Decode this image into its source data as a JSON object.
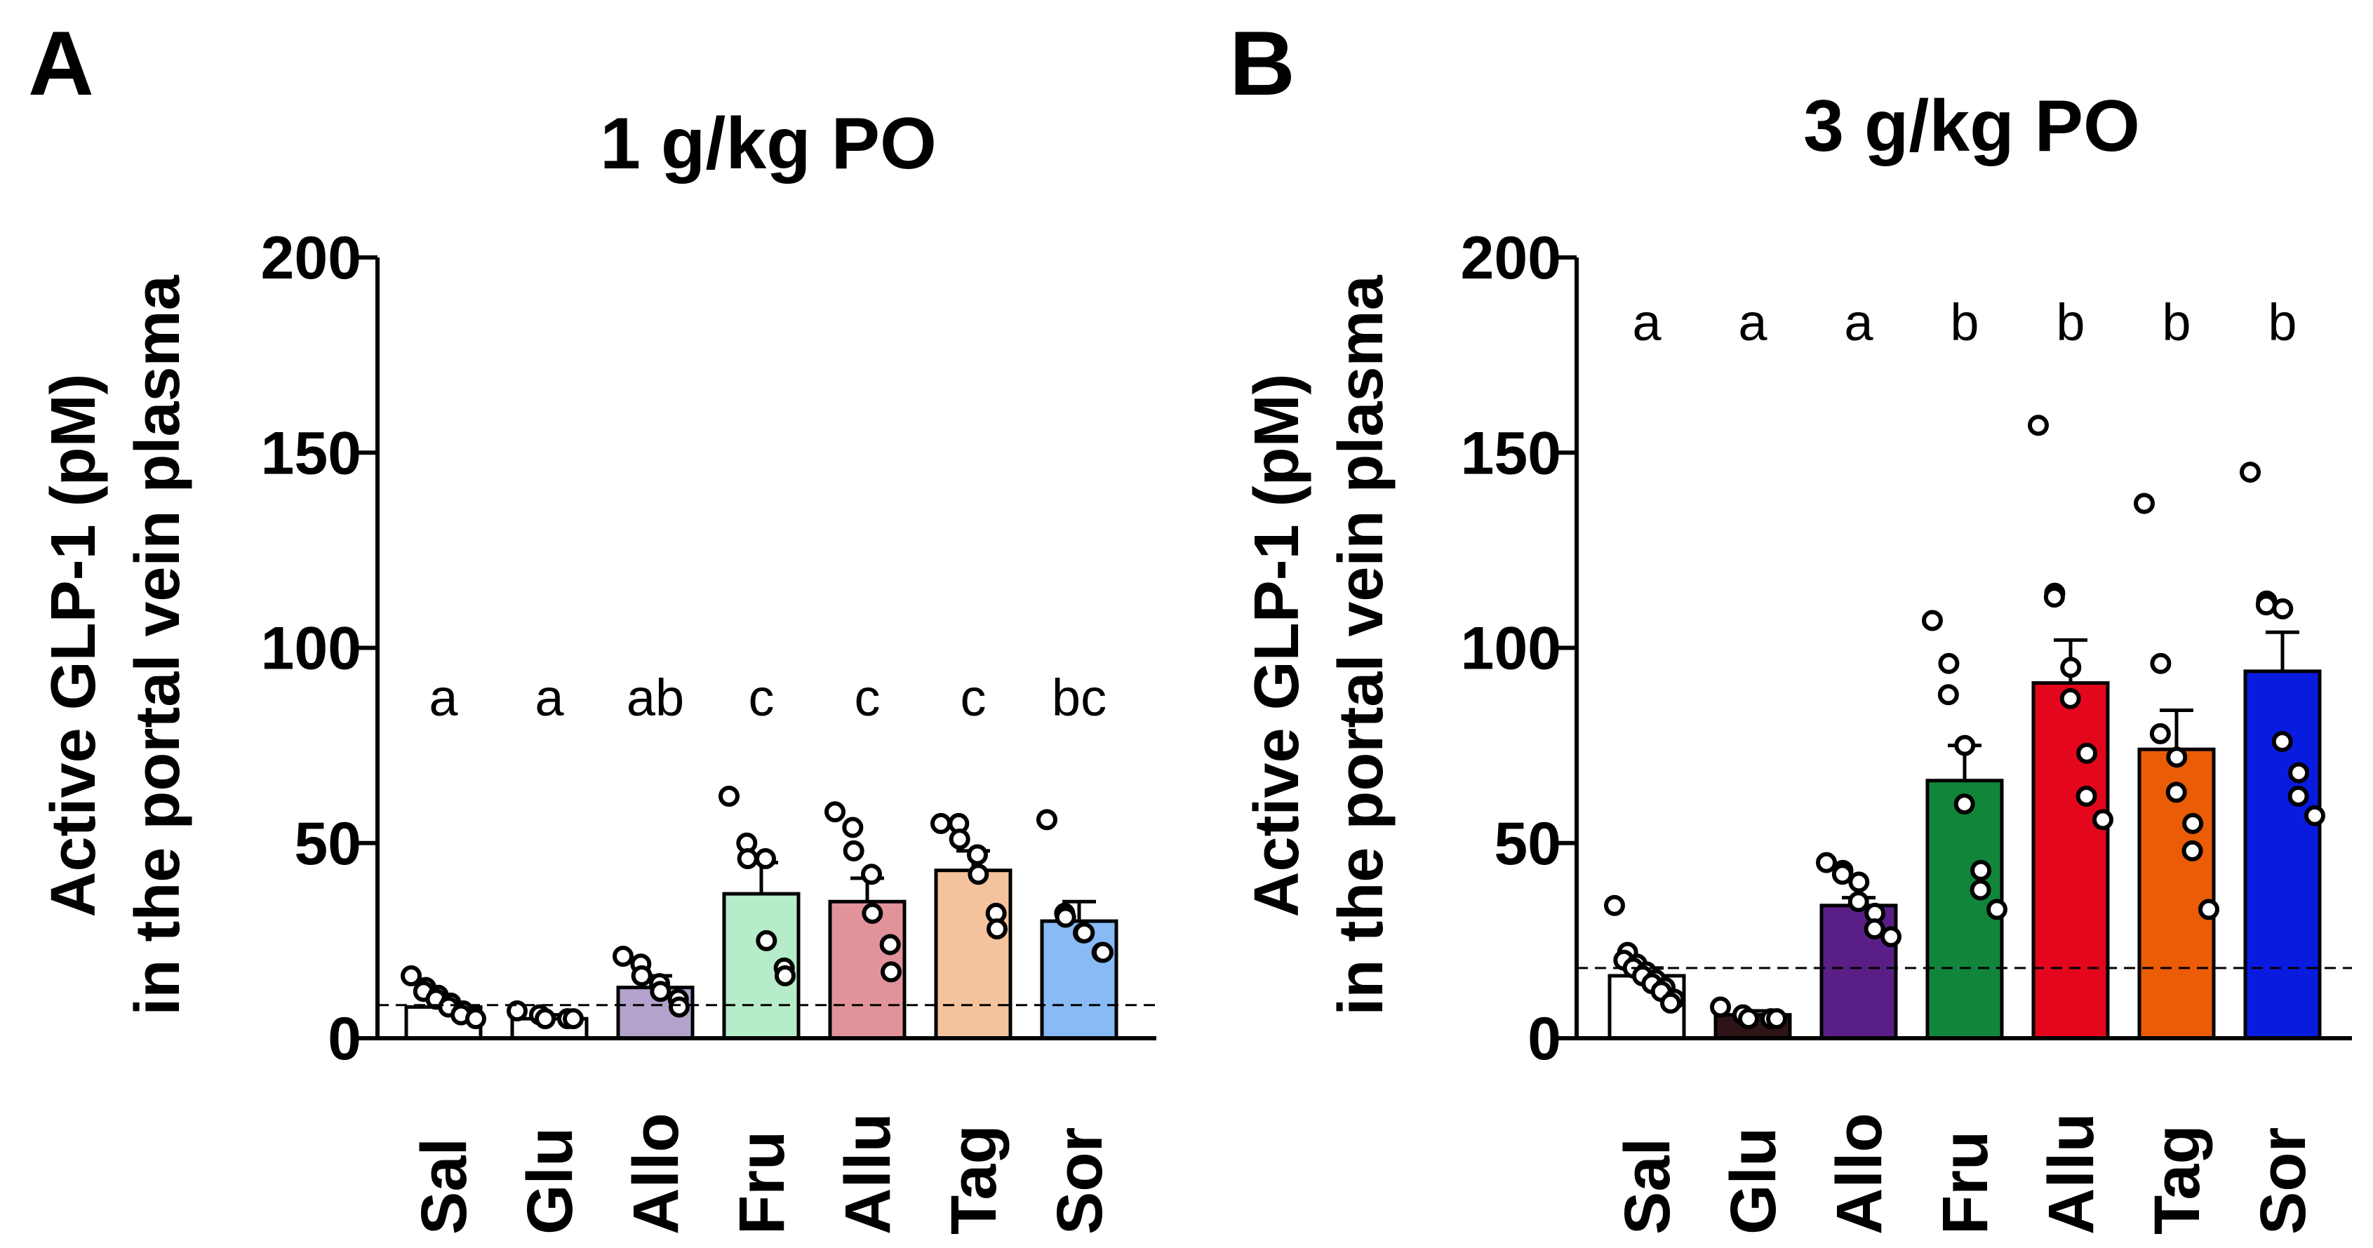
{
  "chart_data": [
    {
      "panel_label": "A",
      "type": "bar",
      "title": "1 g/kg PO",
      "ylabel_line1": "Active GLP-1 (pM)",
      "ylabel_line2": "in the portal vein plasma",
      "ylim": [
        0,
        200
      ],
      "yticks": [
        0,
        50,
        100,
        150,
        200
      ],
      "categories": [
        "Sal",
        "Glu",
        "Allo",
        "Fru",
        "Allu",
        "Tag",
        "Sor"
      ],
      "values": [
        8,
        5,
        13,
        37,
        35,
        43,
        30
      ],
      "errors": [
        2,
        1,
        3,
        8,
        6,
        5,
        5
      ],
      "letters": [
        "a",
        "a",
        "ab",
        "c",
        "c",
        "c",
        "bc"
      ],
      "colors": [
        "#ffffff",
        "#ffffff",
        "#b3a3cc",
        "#b6ecc9",
        "#e2939a",
        "#f4c39e",
        "#88baf5"
      ],
      "reference_line": 8.5,
      "points": [
        [
          16,
          13,
          12,
          11,
          10,
          9,
          8,
          7,
          6,
          5
        ],
        [
          7,
          6,
          5,
          5,
          5
        ],
        [
          21,
          19,
          16,
          14,
          12,
          10,
          8
        ],
        [
          62,
          50,
          46,
          46,
          25,
          18,
          16
        ],
        [
          58,
          54,
          48,
          42,
          32,
          24,
          17
        ],
        [
          55,
          55,
          51,
          47,
          42,
          32,
          28
        ],
        [
          56,
          32,
          31,
          27,
          27,
          22,
          22
        ]
      ]
    },
    {
      "panel_label": "B",
      "type": "bar",
      "title": "3 g/kg PO",
      "ylabel_line1": "Active GLP-1 (pM)",
      "ylabel_line2": "in the portal vein plasma",
      "ylim": [
        0,
        200
      ],
      "yticks": [
        0,
        50,
        100,
        150,
        200
      ],
      "categories": [
        "Sal",
        "Glu",
        "Allo",
        "Fru",
        "Allu",
        "Tag",
        "Sor"
      ],
      "values": [
        16,
        6,
        34,
        66,
        91,
        74,
        94
      ],
      "errors": [
        2,
        1,
        2,
        9,
        11,
        10,
        10
      ],
      "letters": [
        "a",
        "a",
        "a",
        "b",
        "b",
        "b",
        "b"
      ],
      "colors": [
        "#ffffff",
        "#2d1416",
        "#5a1f86",
        "#11863a",
        "#e3061d",
        "#ea5c05",
        "#0a1be0"
      ],
      "reference_line": 18,
      "points": [
        [
          34,
          22,
          20,
          19,
          18,
          17,
          16,
          15,
          14,
          13,
          12,
          10,
          9
        ],
        [
          8,
          6,
          5,
          5,
          5
        ],
        [
          45,
          43,
          42,
          40,
          35,
          32,
          28,
          26
        ],
        [
          107,
          96,
          88,
          75,
          60,
          43,
          38,
          33
        ],
        [
          157,
          114,
          113,
          95,
          87,
          73,
          62,
          56
        ],
        [
          137,
          96,
          78,
          72,
          63,
          55,
          48,
          33
        ],
        [
          145,
          112,
          111,
          110,
          76,
          68,
          62,
          57
        ]
      ]
    }
  ]
}
